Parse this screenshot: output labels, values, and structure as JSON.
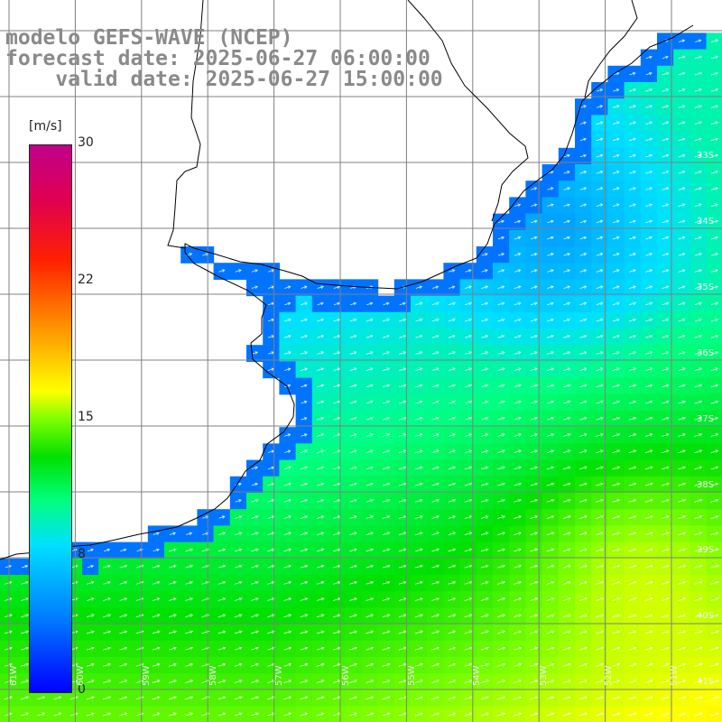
{
  "title": {
    "line1": "modelo GEFS-WAVE (NCEP)",
    "line2": "forecast date: 2025-06-27 06:00:00",
    "line3": "    valid date: 2025-06-27 15:00:00"
  },
  "colorbar": {
    "unit": "[m/s]",
    "ticks": [
      "30",
      "22",
      "15",
      "8",
      "0"
    ],
    "tick_values": [
      30,
      22,
      15,
      8,
      0
    ],
    "min": 0,
    "max": 30,
    "colors": [
      "#0000ff",
      "#0080ff",
      "#00e0ff",
      "#00ff80",
      "#00e000",
      "#80ff00",
      "#ffff00",
      "#ff9000",
      "#ff2000",
      "#e00050",
      "#c0008a"
    ]
  },
  "map": {
    "lat_labels": [
      "33S",
      "34S",
      "35S",
      "36S",
      "37S",
      "38S",
      "39S",
      "40S",
      "41S"
    ],
    "lon_labels": [
      "61W",
      "60W",
      "59W",
      "58W",
      "57W",
      "56W",
      "55W",
      "54W",
      "53W",
      "52W",
      "51W"
    ],
    "ocean_color": "#ffffff",
    "land_color": "#ffffff",
    "coast_color": "#000000",
    "grid_color": "#808080",
    "arrow_color": "#ffffff",
    "arrow_direction": "east-northeast"
  }
}
